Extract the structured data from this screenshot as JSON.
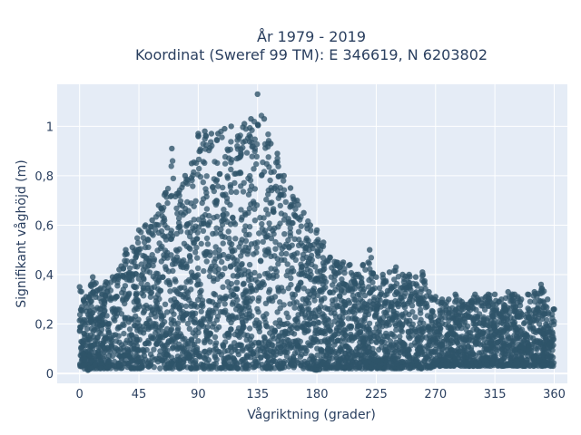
{
  "chart_data": {
    "type": "scatter",
    "title": "År 1979 - 2019",
    "subtitle": "Koordinat (Sweref 99 TM): E 346619, N 6203802",
    "xlabel": "Vågriktning (grader)",
    "ylabel": "Signifikant våghöjd (m)",
    "xlim": [
      -17,
      370
    ],
    "ylim": [
      -0.04,
      1.17
    ],
    "xticks": [
      0,
      45,
      90,
      135,
      180,
      225,
      270,
      315,
      360
    ],
    "xtick_labels": [
      "0",
      "45",
      "90",
      "135",
      "180",
      "225",
      "270",
      "315",
      "360"
    ],
    "yticks": [
      0,
      0.2,
      0.4,
      0.6,
      0.8,
      1
    ],
    "ytick_labels": [
      "0",
      "0,2",
      "0,4",
      "0,6",
      "0,8",
      "1"
    ],
    "grid": true,
    "legend": "none",
    "marker_color": "#2f5469",
    "plot_bg": "#e5ecf6",
    "series": [
      {
        "x": [
          0,
          5,
          10,
          15,
          20,
          25,
          30,
          35,
          40,
          45,
          50,
          55,
          60,
          65,
          70,
          75,
          80,
          85,
          90,
          95,
          100,
          105,
          110,
          115,
          120,
          125,
          130,
          135,
          140,
          145,
          150,
          155,
          160,
          165,
          170,
          175,
          180,
          185,
          190,
          195,
          200,
          205,
          210,
          215,
          220,
          225,
          230,
          235,
          240,
          245,
          250,
          255,
          260,
          265,
          270,
          275,
          280,
          285,
          290,
          295,
          300,
          305,
          310,
          315,
          320,
          325,
          330,
          335,
          340,
          345,
          350,
          355,
          360
        ],
        "y_max": [
          0.35,
          0.31,
          0.39,
          0.34,
          0.37,
          0.39,
          0.42,
          0.5,
          0.51,
          0.58,
          0.6,
          0.62,
          0.68,
          0.73,
          0.91,
          0.73,
          0.8,
          0.85,
          0.97,
          0.98,
          0.97,
          0.97,
          0.99,
          1.0,
          0.96,
          1.01,
          1.03,
          1.13,
          1.03,
          0.93,
          0.89,
          0.8,
          0.75,
          0.7,
          0.65,
          0.6,
          0.58,
          0.53,
          0.47,
          0.45,
          0.45,
          0.44,
          0.4,
          0.44,
          0.5,
          0.39,
          0.4,
          0.41,
          0.43,
          0.4,
          0.4,
          0.39,
          0.41,
          0.33,
          0.31,
          0.3,
          0.3,
          0.32,
          0.29,
          0.28,
          0.32,
          0.3,
          0.32,
          0.32,
          0.3,
          0.33,
          0.32,
          0.3,
          0.32,
          0.33,
          0.36,
          0.3,
          0.26
        ],
        "y_min": [
          0.03,
          0.01,
          0.02,
          0.02,
          0.02,
          0.02,
          0.02,
          0.02,
          0.02,
          0.02,
          0.02,
          0.02,
          0.02,
          0.02,
          0.02,
          0.02,
          0.02,
          0.02,
          0.02,
          0.02,
          0.02,
          0.02,
          0.02,
          0.02,
          0.02,
          0.02,
          0.02,
          0.02,
          0.02,
          0.02,
          0.02,
          0.02,
          0.02,
          0.02,
          0.02,
          0.02,
          0.01,
          0.02,
          0.02,
          0.02,
          0.02,
          0.02,
          0.02,
          0.02,
          0.02,
          0.02,
          0.02,
          0.02,
          0.02,
          0.02,
          0.02,
          0.02,
          0.02,
          0.02,
          0.03,
          0.03,
          0.03,
          0.03,
          0.03,
          0.03,
          0.03,
          0.03,
          0.03,
          0.03,
          0.03,
          0.03,
          0.03,
          0.03,
          0.03,
          0.03,
          0.03,
          0.03,
          0.03
        ]
      }
    ]
  }
}
